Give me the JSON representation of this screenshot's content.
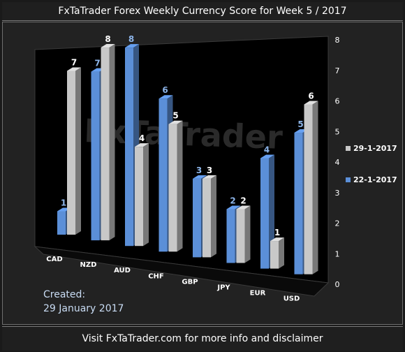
{
  "header": {
    "title": "FxTaTrader Forex Weekly Currency Score for Week 5 / 2017"
  },
  "footer": {
    "text": "Visit FxTaTrader.com for more info and disclaimer"
  },
  "created": {
    "label": "Created:",
    "date": "29 January 2017"
  },
  "watermark": "FxTaTrader",
  "colors": {
    "blue": "#5b8fd8",
    "gray": "#c8c8c8",
    "blue_label": "#8cb4e8",
    "gray_label": "#ffffff"
  },
  "chart_data": {
    "type": "bar",
    "title": "FxTaTrader Forex Weekly Currency Score for Week 5 / 2017",
    "categories": [
      "CAD",
      "NZD",
      "AUD",
      "CHF",
      "GBP",
      "JPY",
      "EUR",
      "USD"
    ],
    "series": [
      {
        "name": "22-1-2017",
        "color": "#5b8fd8",
        "values": [
          1,
          7,
          8,
          6,
          3,
          2,
          4,
          5
        ]
      },
      {
        "name": "29-1-2017",
        "color": "#c8c8c8",
        "values": [
          7,
          8,
          4,
          5,
          3,
          2,
          1,
          6
        ]
      }
    ],
    "ylim": [
      0,
      8
    ],
    "yticks": [
      0,
      1,
      2,
      3,
      4,
      5,
      6,
      7,
      8
    ],
    "grid": false,
    "legend_position": "right"
  }
}
